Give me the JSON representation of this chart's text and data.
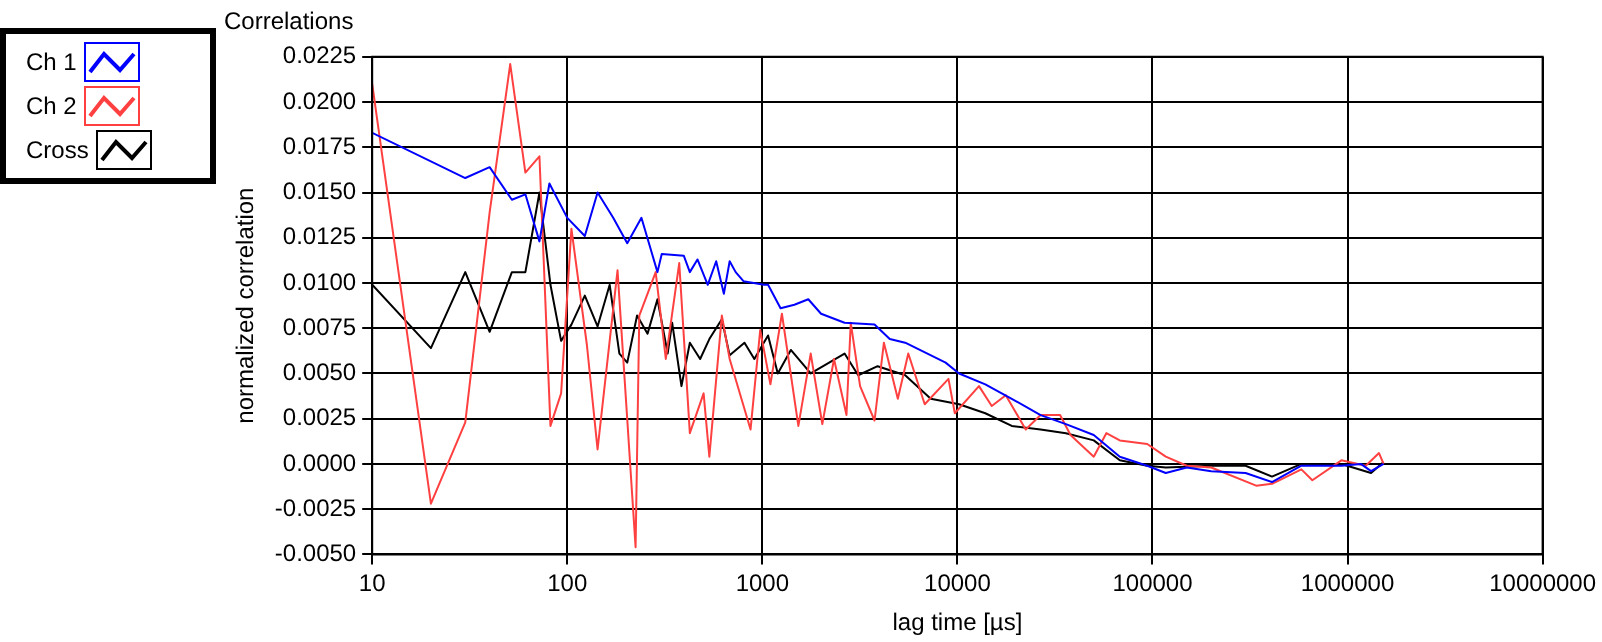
{
  "chart_data": {
    "type": "line",
    "title": "Correlations",
    "xlabel": "lag time [µs]",
    "ylabel": "normalized correlation",
    "log": "x",
    "grid": true,
    "legend": "top left",
    "marker": "none",
    "line_style": "solid",
    "xlim": [
      10,
      10000000
    ],
    "xticks": [
      10,
      100,
      1000,
      10000,
      100000,
      1000000,
      10000000
    ],
    "ylim": [
      -0.005,
      0.0225
    ],
    "yticks": [
      {
        "value": -0.005,
        "label": "-0.0050"
      },
      {
        "value": -0.0025,
        "label": "-0.0025"
      },
      {
        "value": 0,
        "label": "0.0000"
      },
      {
        "value": 0.0025,
        "label": "0.0025"
      },
      {
        "value": 0.005,
        "label": "0.0050"
      },
      {
        "value": 0.0075,
        "label": "0.0075"
      },
      {
        "value": 0.01,
        "label": "0.0100"
      },
      {
        "value": 0.0125,
        "label": "0.0125"
      },
      {
        "value": 0.015,
        "label": "0.0150"
      },
      {
        "value": 0.0175,
        "label": "0.0175"
      },
      {
        "value": 0.02,
        "label": "0.0200"
      },
      {
        "value": 0.0225,
        "label": "0.0225"
      }
    ],
    "series": [
      {
        "name": "Ch 1",
        "color": "#0000ff",
        "x": [
          10,
          30,
          40,
          52,
          61,
          72,
          81,
          100,
          123,
          143,
          172,
          203,
          240,
          290,
          305,
          396,
          425,
          465,
          525,
          580,
          635,
          680,
          730,
          800,
          1020,
          1070,
          1240,
          1460,
          1720,
          2000,
          2640,
          3760,
          4500,
          5400,
          8700,
          10200,
          13900,
          19000,
          26700,
          36000,
          50000,
          68000,
          94000,
          117000,
          150000,
          200000,
          300000,
          410000,
          580000,
          740000,
          930000,
          1170000,
          1320000,
          1530000
        ],
        "values": [
          0.0183,
          0.0158,
          0.0164,
          0.0146,
          0.0149,
          0.0123,
          0.0155,
          0.0136,
          0.0126,
          0.015,
          0.0136,
          0.0122,
          0.0136,
          0.0106,
          0.0116,
          0.0115,
          0.0106,
          0.0113,
          0.0099,
          0.0112,
          0.0094,
          0.0112,
          0.0106,
          0.0101,
          0.0099,
          0.0099,
          0.0086,
          0.0088,
          0.0091,
          0.0083,
          0.0078,
          0.0077,
          0.0069,
          0.0067,
          0.0056,
          0.005,
          0.0044,
          0.0036,
          0.0027,
          0.0022,
          0.0016,
          0.0004,
          -0.0001,
          -0.0005,
          -0.0002,
          -0.0004,
          -0.0005,
          -0.001,
          -0.0001,
          -0.0001,
          -0.0001,
          0,
          -0.0004,
          0
        ]
      },
      {
        "name": "Ch 2",
        "color": "#ff4040",
        "x": [
          10,
          20,
          30,
          40,
          51,
          61,
          72,
          82,
          93,
          105,
          126,
          143,
          181,
          224,
          234,
          284,
          320,
          375,
          425,
          500,
          535,
          620,
          680,
          870,
          975,
          1100,
          1260,
          1530,
          1770,
          2030,
          2330,
          2700,
          2840,
          3170,
          3760,
          4200,
          4950,
          5600,
          6800,
          9000,
          9700,
          12900,
          15000,
          17700,
          22400,
          26700,
          33600,
          38000,
          50000,
          58000,
          68000,
          94000,
          117000,
          150000,
          200000,
          340000,
          410000,
          580000,
          660000,
          930000,
          1240000,
          1450000,
          1530000
        ],
        "values": [
          0.021,
          -0.0022,
          0.0023,
          0.0139,
          0.0221,
          0.0161,
          0.017,
          0.0021,
          0.0039,
          0.013,
          0.0066,
          0.0008,
          0.0107,
          -0.0046,
          0.0082,
          0.0106,
          0.0058,
          0.0111,
          0.0017,
          0.0039,
          0.0004,
          0.0082,
          0.0058,
          0.0019,
          0.0074,
          0.0044,
          0.0083,
          0.0021,
          0.0061,
          0.0022,
          0.0058,
          0.0027,
          0.0078,
          0.0043,
          0.0024,
          0.0067,
          0.0036,
          0.0061,
          0.0033,
          0.0047,
          0.0028,
          0.0043,
          0.0032,
          0.0038,
          0.0019,
          0.0027,
          0.0027,
          0.0016,
          0.0004,
          0.0017,
          0.0013,
          0.0011,
          0.0004,
          -0.0001,
          -0.0002,
          -0.0012,
          -0.0011,
          -0.0003,
          -0.0009,
          0.0002,
          -0.0001,
          0.0006,
          0
        ]
      },
      {
        "name": "Cross",
        "color": "#000000",
        "x": [
          10,
          20,
          30,
          40,
          52,
          61,
          72,
          82,
          93,
          105,
          123,
          143,
          165,
          185,
          203,
          228,
          258,
          290,
          327,
          345,
          385,
          425,
          480,
          535,
          620,
          680,
          810,
          910,
          1070,
          1200,
          1400,
          1770,
          2640,
          3100,
          3900,
          5400,
          7300,
          10200,
          13900,
          19000,
          26700,
          36000,
          50000,
          68000,
          94000,
          117000,
          200000,
          300000,
          410000,
          580000,
          930000,
          1320000,
          1530000
        ],
        "values": [
          0.0099,
          0.0064,
          0.0106,
          0.0073,
          0.0106,
          0.0106,
          0.015,
          0.0099,
          0.0068,
          0.0077,
          0.0093,
          0.0076,
          0.0099,
          0.0061,
          0.0056,
          0.0082,
          0.0072,
          0.0091,
          0.0061,
          0.0078,
          0.0043,
          0.0067,
          0.0058,
          0.0069,
          0.008,
          0.006,
          0.0067,
          0.0058,
          0.0071,
          0.005,
          0.0063,
          0.005,
          0.0061,
          0.0049,
          0.0054,
          0.0049,
          0.0036,
          0.0033,
          0.0028,
          0.0021,
          0.0019,
          0.0017,
          0.0013,
          0.0002,
          -0.0001,
          -0.0002,
          -0.0001,
          -0.0001,
          -0.0007,
          0,
          0,
          -0.0005,
          0.0001
        ]
      }
    ]
  }
}
